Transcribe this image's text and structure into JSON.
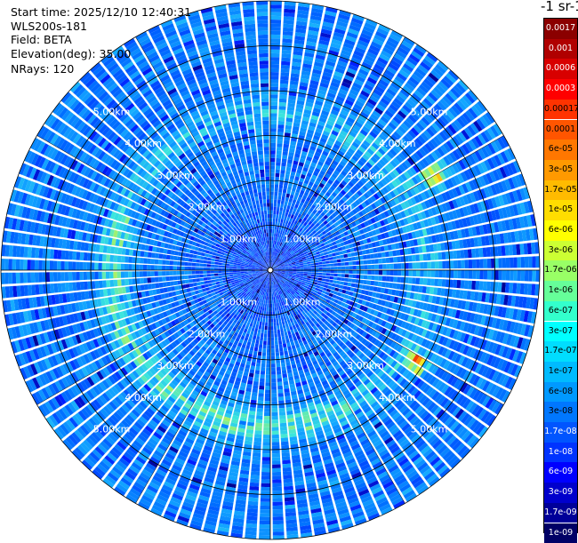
{
  "header": {
    "start_time": "Start time: 2025/12/10 12:40:31",
    "instrument": "WLS200s-181",
    "field": "Field: BETA",
    "elevation": "Elevation(deg): 35.00",
    "nrays": "NRays: 120"
  },
  "colorbar": {
    "title": "-1 sr-1",
    "labels": [
      "0.0017",
      "0.001",
      "0.0006",
      "0.0003",
      "0.00017",
      "0.0001",
      "6e-05",
      "3e-05",
      "1.7e-05",
      "1e-05",
      "6e-06",
      "3e-06",
      "1.7e-06",
      "1e-06",
      "6e-07",
      "3e-07",
      "1.7e-07",
      "1e-07",
      "6e-08",
      "3e-08",
      "1.7e-08",
      "1e-08",
      "6e-09",
      "3e-09",
      "1.7e-09",
      "1e-09"
    ],
    "colors": [
      "#8b0000",
      "#b00000",
      "#d80000",
      "#ff0000",
      "#ff3300",
      "#ff5500",
      "#ff7700",
      "#ff9900",
      "#ffbb00",
      "#ffdd00",
      "#ffff00",
      "#ccff33",
      "#99ff66",
      "#66ff99",
      "#33ffcc",
      "#00ffff",
      "#00ddff",
      "#00bbff",
      "#0099ff",
      "#0077ff",
      "#0055ff",
      "#0033ff",
      "#0000ff",
      "#0000cc",
      "#000099",
      "#000066"
    ]
  },
  "chart_data": {
    "type": "polar-ppi",
    "field": "BETA",
    "n_rays": 120,
    "range_rings_km": [
      1,
      2,
      3,
      4,
      5
    ],
    "range_ring_labels": [
      "1.00km",
      "2.00km",
      "3.00km",
      "4.00km",
      "5.00km"
    ],
    "max_range_km": 6.0,
    "features": [
      {
        "name": "aerosol-ring",
        "range_km": 3.5,
        "value": "1e-06"
      },
      {
        "name": "hotspot-ne",
        "azimuth_deg": 60,
        "range_km": 4.2,
        "value": "3e-05"
      },
      {
        "name": "hotspot-se",
        "azimuth_deg": 122,
        "range_km": 3.9,
        "value": "3e-05"
      }
    ]
  }
}
